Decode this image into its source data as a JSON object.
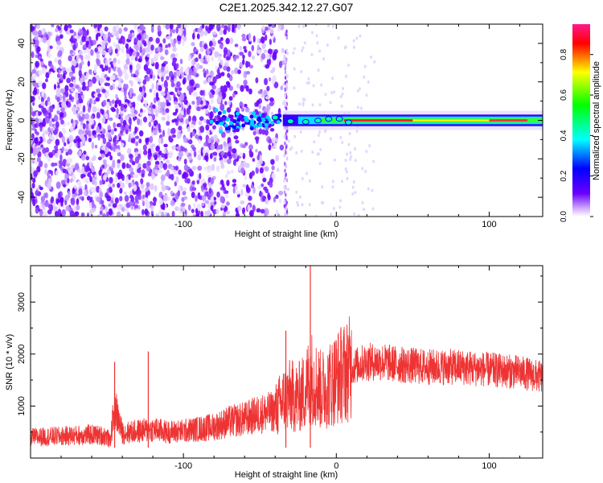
{
  "title": "C2E1.2025.342.12.27.G07",
  "chart_data": [
    {
      "type": "heatmap",
      "title": "C2E1.2025.342.12.27.G07",
      "xlabel": "Height of straight line (km)",
      "ylabel": "Frequency (Hz)",
      "xlim": [
        -200,
        135
      ],
      "ylim": [
        -50,
        50
      ],
      "x_ticks": [
        -100,
        0,
        100
      ],
      "y_ticks": [
        -40,
        -20,
        0,
        20,
        40
      ],
      "grid": false,
      "colorbar": {
        "label": "Normalized spectral amplitude",
        "range": [
          0.0,
          0.95
        ],
        "ticks": [
          0.0,
          0.2,
          0.4,
          0.6,
          0.8
        ],
        "colormap": [
          "#ffffff",
          "#6a00ff",
          "#0000ff",
          "#00ffff",
          "#00ff00",
          "#ffff00",
          "#ff0000",
          "#ff1493"
        ]
      },
      "features": {
        "noise_region_km": [
          -200,
          -35
        ],
        "signal_start_km": -80,
        "signal_center_hz": 0,
        "peak_amplitude_region_km": [
          10,
          135
        ]
      }
    },
    {
      "type": "line",
      "xlabel": "Height of straight line (km)",
      "ylabel": "SNR (10 * v/v)",
      "xlim": [
        -200,
        135
      ],
      "ylim": [
        0,
        3700
      ],
      "x_ticks": [
        -100,
        0,
        100
      ],
      "y_ticks": [
        1000,
        2000,
        3000
      ],
      "grid": false,
      "line_color": "#ee3333",
      "series": [
        {
          "x": [
            -200,
            -180,
            -160,
            -150,
            -148,
            -145,
            -140,
            -120,
            -110,
            -100,
            -90,
            -80,
            -70,
            -60,
            -50,
            -40,
            -35,
            -30,
            -25,
            -20,
            -17,
            -15,
            -10,
            -5,
            0,
            5,
            10,
            20,
            30,
            40,
            60,
            80,
            100,
            120,
            135
          ],
          "values": [
            400,
            420,
            450,
            420,
            300,
            1000,
            480,
            550,
            500,
            520,
            560,
            600,
            700,
            750,
            850,
            900,
            1100,
            1200,
            1150,
            1300,
            1600,
            1500,
            1300,
            1400,
            1550,
            1650,
            1750,
            1850,
            1850,
            1800,
            1750,
            1750,
            1700,
            1650,
            1550
          ]
        }
      ],
      "annotations": {
        "spikes": [
          {
            "x": -145,
            "y": 1850
          },
          {
            "x": -123,
            "y": 2050
          },
          {
            "x": -33,
            "y": 2450
          },
          {
            "x": -17,
            "y": 3700
          }
        ]
      }
    }
  ]
}
